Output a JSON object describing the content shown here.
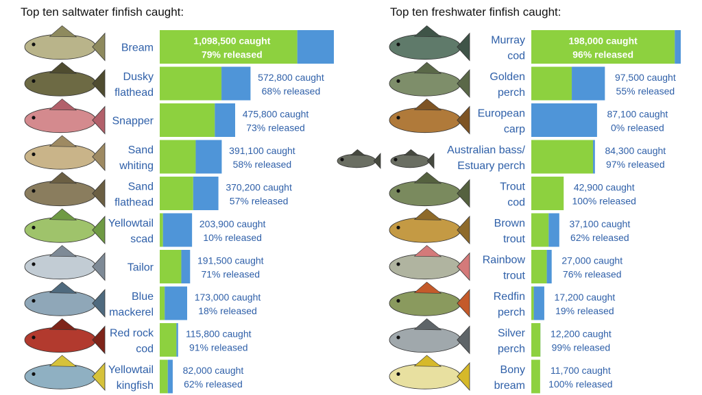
{
  "colors": {
    "released": "#8dd13f",
    "kept": "#4f95d8",
    "text": "#2e5fa8"
  },
  "chart_data": [
    {
      "type": "bar",
      "orientation": "horizontal",
      "stacked": true,
      "title": "Top ten saltwater finfish caught:",
      "series_meaning": [
        "released (green)",
        "kept (blue)"
      ],
      "categories": [
        "Bream",
        "Dusky flathead",
        "Snapper",
        "Sand whiting",
        "Sand flathead",
        "Yellowtail scad",
        "Tailor",
        "Blue mackerel",
        "Red rock cod",
        "Yellowtail kingfish"
      ],
      "species_lines": [
        [
          "Bream"
        ],
        [
          "Dusky",
          "flathead"
        ],
        [
          "Snapper"
        ],
        [
          "Sand",
          "whiting"
        ],
        [
          "Sand",
          "flathead"
        ],
        [
          "Yellowtail",
          "scad"
        ],
        [
          "Tailor"
        ],
        [
          "Blue",
          "mackerel"
        ],
        [
          "Red rock",
          "cod"
        ],
        [
          "Yellowtail",
          "kingfish"
        ]
      ],
      "caught": [
        1098500,
        572800,
        475800,
        391100,
        370200,
        203900,
        191500,
        173000,
        115800,
        82000
      ],
      "released_pct": [
        79,
        68,
        73,
        58,
        57,
        10,
        71,
        18,
        91,
        62
      ],
      "caught_labels": [
        "1,098,500 caught",
        "572,800 caught",
        "475,800 caught",
        "391,100 caught",
        "370,200 caught",
        "203,900 caught",
        "191,500 caught",
        "173,000 caught",
        "115,800 caught",
        "82,000 caught"
      ],
      "released_labels": [
        "79% released",
        "68% released",
        "73% released",
        "58% released",
        "57% released",
        "10% released",
        "71% released",
        "18% released",
        "91% released",
        "62% released"
      ],
      "xlim": [
        0,
        1098500
      ]
    },
    {
      "type": "bar",
      "orientation": "horizontal",
      "stacked": true,
      "title": "Top ten freshwater finfish caught:",
      "series_meaning": [
        "released (green)",
        "kept (blue)"
      ],
      "categories": [
        "Murray cod",
        "Golden perch",
        "European carp",
        "Australian bass/ Estuary perch",
        "Trout cod",
        "Brown trout",
        "Rainbow trout",
        "Redfin perch",
        "Silver perch",
        "Bony bream"
      ],
      "species_lines": [
        [
          "Murray",
          "cod"
        ],
        [
          "Golden",
          "perch"
        ],
        [
          "European",
          "carp"
        ],
        [
          "Australian bass/",
          "Estuary perch"
        ],
        [
          "Trout",
          "cod"
        ],
        [
          "Brown",
          "trout"
        ],
        [
          "Rainbow",
          "trout"
        ],
        [
          "Redfin",
          "perch"
        ],
        [
          "Silver",
          "perch"
        ],
        [
          "Bony",
          "bream"
        ]
      ],
      "caught": [
        198000,
        97500,
        87100,
        84300,
        42900,
        37100,
        27000,
        17200,
        12200,
        11700
      ],
      "released_pct": [
        96,
        55,
        0,
        97,
        100,
        62,
        76,
        19,
        99,
        100
      ],
      "caught_labels": [
        "198,000 caught",
        "97,500 caught",
        "87,100 caught",
        "84,300 caught",
        "42,900 caught",
        "37,100 caught",
        "27,000 caught",
        "17,200 caught",
        "12,200 caught",
        "11,700 caught"
      ],
      "released_labels": [
        "96% released",
        "55% released",
        "0% released",
        "97% released",
        "100% released",
        "62% released",
        "76% released",
        "19% released",
        "99% released",
        "100% released"
      ],
      "xlim": [
        0,
        198000
      ]
    }
  ]
}
